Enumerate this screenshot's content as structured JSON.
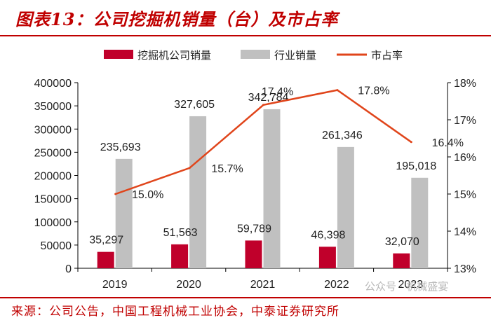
{
  "title": "图表13：公司挖掘机销量（台）及市占率",
  "source": "来源：公司公告，中国工程机械工业协会，中泰证券研究所",
  "watermark": "公众号 · 机械盛宴",
  "colors": {
    "company": "#c0002b",
    "industry": "#c0c0c0",
    "share": "#e0451b",
    "accent": "#c00000"
  },
  "chart_data": {
    "type": "bar",
    "categories": [
      "2019",
      "2020",
      "2021",
      "2022",
      "2023"
    ],
    "series": [
      {
        "name": "挖掘机公司销量",
        "type": "bar",
        "axis": "left",
        "values": [
          35297,
          51563,
          59789,
          46398,
          32070
        ],
        "labels": [
          "35,297",
          "51,563",
          "59,789",
          "46,398",
          "32,070"
        ]
      },
      {
        "name": "行业销量",
        "type": "bar",
        "axis": "left",
        "values": [
          235693,
          327605,
          342784,
          261346,
          195018
        ],
        "labels": [
          "235,693",
          "327,605",
          "342,784",
          "261,346",
          "195,018"
        ]
      },
      {
        "name": "市占率",
        "type": "line",
        "axis": "right",
        "values": [
          15.0,
          15.7,
          17.4,
          17.8,
          16.4
        ],
        "labels": [
          "15.0%",
          "15.7%",
          "17.4%",
          "17.8%",
          "16.4%"
        ]
      }
    ],
    "ylim": [
      0,
      400000
    ],
    "yticks": [
      "0",
      "50000",
      "100000",
      "150000",
      "200000",
      "250000",
      "300000",
      "350000",
      "400000"
    ],
    "y2lim": [
      13,
      18
    ],
    "y2ticks": [
      "13%",
      "14%",
      "15%",
      "16%",
      "17%",
      "18%"
    ],
    "legend_position": "top"
  }
}
